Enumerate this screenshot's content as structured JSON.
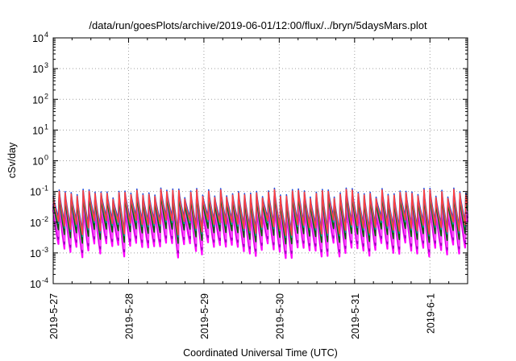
{
  "chart_data": {
    "type": "line",
    "title": "/data/run/goesPlots/archive/2019-06-01/12:00/flux/../bryn/5daysMars.plot",
    "xlabel": "Coordinated Universal Time (UTC)",
    "ylabel": "cSv/day",
    "yscale": "log",
    "ylim": [
      0.0001,
      10000
    ],
    "y_ticks": [
      {
        "exp": "-4",
        "value": 0.0001
      },
      {
        "exp": "-3",
        "value": 0.001
      },
      {
        "exp": "-2",
        "value": 0.01
      },
      {
        "exp": "-1",
        "value": 0.1
      },
      {
        "exp": "0",
        "value": 1
      },
      {
        "exp": "1",
        "value": 10
      },
      {
        "exp": "2",
        "value": 100
      },
      {
        "exp": "3",
        "value": 1000
      },
      {
        "exp": "4",
        "value": 10000
      }
    ],
    "y_tick_base": "10",
    "xlim_days": [
      0,
      5.5
    ],
    "x_ticks": [
      {
        "label": "2019-5-27",
        "day": 0
      },
      {
        "label": "2019-5-28",
        "day": 1
      },
      {
        "label": "2019-5-29",
        "day": 2
      },
      {
        "label": "2019-5-30",
        "day": 3
      },
      {
        "label": "2019-5-31",
        "day": 4
      },
      {
        "label": "2019-6-1",
        "day": 5
      }
    ],
    "grid": true,
    "legend": "none",
    "oscillation": {
      "cycles_per_day": 12.6,
      "peak_range": [
        0.06,
        0.13
      ],
      "trough_range": [
        0.0012,
        0.004
      ]
    },
    "series": [
      {
        "color": "#ff00ff",
        "peak_factor": 0.35,
        "trough_factor": 0.55
      },
      {
        "color": "#a000c0",
        "peak_factor": 0.45,
        "trough_factor": 0.8
      },
      {
        "color": "#ff40ff",
        "peak_factor": 0.55,
        "trough_factor": 1.0
      },
      {
        "color": "#006400",
        "peak_factor": 0.7,
        "trough_factor": 1.6
      },
      {
        "color": "#00a0a0",
        "peak_factor": 0.85,
        "trough_factor": 2.6
      },
      {
        "color": "#1e50e0",
        "peak_factor": 1.0,
        "trough_factor": 4.0
      },
      {
        "color": "#ff4040",
        "peak_factor": 0.9,
        "trough_factor": 3.0
      }
    ]
  }
}
